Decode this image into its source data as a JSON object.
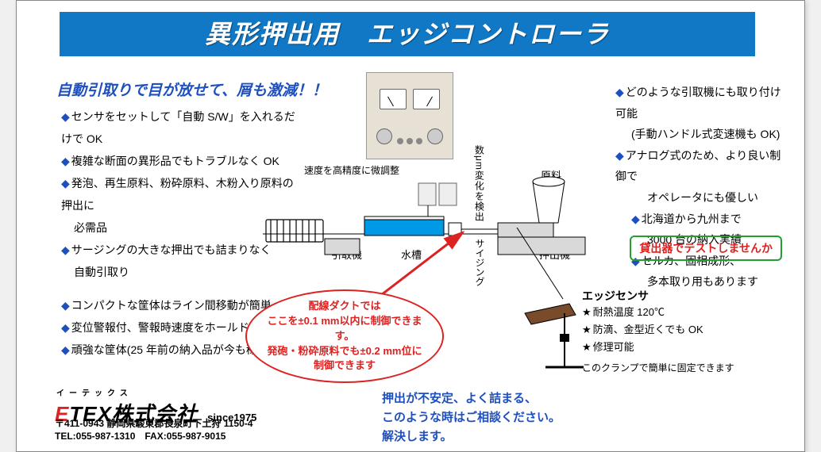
{
  "title": "異形押出用　エッジコントローラ",
  "subtitle": "自動引取りで目が放せて、屑も激減！！",
  "left_bullets_g1": [
    "センサをセットして「自動 S/W」を入れるだけで OK",
    "複雑な断面の異形品でもトラブルなく OK",
    "発泡、再生原料、粉砕原料、木粉入り原料の押出に",
    "必需品",
    "サージングの大きな押出でも詰まりなく",
    "自動引取り"
  ],
  "left_bullets_g1_has_diamond": [
    true,
    true,
    true,
    false,
    true,
    false
  ],
  "left_bullets_g2": [
    "コンパクトな筐体はライン間移動が簡単",
    "変位警報付、警報時速度をホールド",
    "頑強な筐体(25 年前の納入品が今も稼働中)"
  ],
  "right_bullets": [
    {
      "t": "どのような引取機にも取り付け可能",
      "d": true,
      "indent": 0
    },
    {
      "t": "(手動ハンドル式変速機も OK)",
      "d": false,
      "indent": 1
    },
    {
      "t": "アナログ式のため、より良い制御で",
      "d": true,
      "indent": 0
    },
    {
      "t": "オペレータにも優しい",
      "d": false,
      "indent": 2
    },
    {
      "t": "北海道から九州まで",
      "d": true,
      "indent": 1
    },
    {
      "t": "3000 台の納入実績",
      "d": false,
      "indent": 2
    },
    {
      "t": "セルカ、固相成形、",
      "d": true,
      "indent": 1
    },
    {
      "t": "多本取り用もあります",
      "d": false,
      "indent": 2
    }
  ],
  "cta": "貸出器でテストしませんか",
  "diagram": {
    "top_label": "速度を高精度に微調整",
    "vert_label_top": "数μm変化を検出",
    "vert_label_bottom": "サイジング",
    "puller": "引取機",
    "tank": "水槽",
    "extruder": "押出機",
    "raw": "原料",
    "tank_fill": "#0099e6",
    "machine_fill": "#d9d9d9",
    "outline": "#000000"
  },
  "callout_lines": [
    "配線ダクトでは",
    "ここを±0.1 mm以内に制御できます。",
    "発砲・粉砕原料でも±0.2 mm位に",
    "制御できます"
  ],
  "sensor": {
    "title": "エッジセンサ",
    "items": [
      "耐熱温度 120℃",
      "防滴、金型近くでも OK",
      "修理可能"
    ],
    "clamp_note": "このクランプで簡単に固定できます"
  },
  "bottom_msg": [
    "押出が不安定、よく詰まる、",
    "このような時はご相談ください。",
    "解決します。"
  ],
  "company": {
    "ruby": "イーテックス",
    "name_red": "E",
    "name_rest": "TEX",
    "kk": "株式会社",
    "since": "since1975",
    "addr": "〒411-0943  静岡県駿東郡長泉町下土狩 1150-4",
    "tel": "TEL:055-987-1310　FAX:055-987-9015"
  },
  "colors": {
    "title_bg": "#1178c5",
    "accent_blue": "#1e4fbf",
    "red": "#d22222",
    "green": "#1fa030"
  }
}
